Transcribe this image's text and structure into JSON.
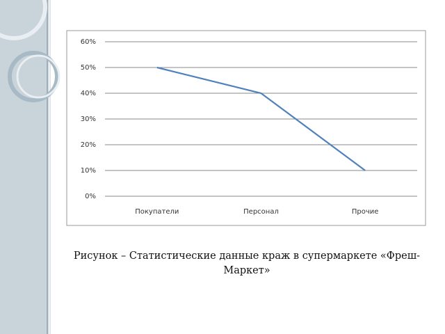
{
  "chart_data": {
    "type": "line",
    "categories": [
      "Покупатели",
      "Персонал",
      "Прочие"
    ],
    "values": [
      50,
      40,
      10
    ],
    "color": "#4f81bd",
    "ylim": [
      0,
      60
    ],
    "yticks": [
      {
        "value": 0,
        "label": "0%"
      },
      {
        "value": 10,
        "label": "10%"
      },
      {
        "value": 20,
        "label": "20%"
      },
      {
        "value": 30,
        "label": "30%"
      },
      {
        "value": 40,
        "label": "40%"
      },
      {
        "value": 50,
        "label": "50%"
      },
      {
        "value": 60,
        "label": "60%"
      }
    ],
    "grid": true,
    "caption": "Рисунок – Статистические данные краж в супермаркете «Фреш-Маркет»"
  }
}
